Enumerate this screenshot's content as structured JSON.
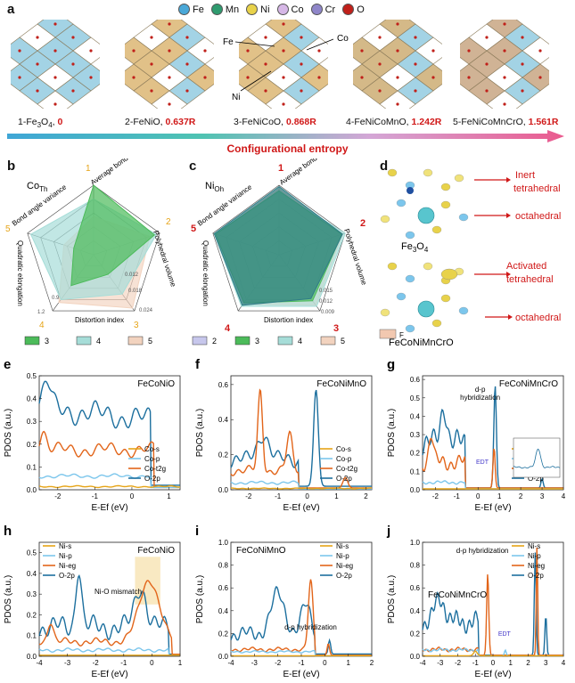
{
  "legend": {
    "items": [
      {
        "label": "Fe",
        "color": "#4aa8d8"
      },
      {
        "label": "Mn",
        "color": "#2f9b6f"
      },
      {
        "label": "Ni",
        "color": "#e8d24a"
      },
      {
        "label": "Co",
        "color": "#d6b7e6"
      },
      {
        "label": "Cr",
        "color": "#8f86c9"
      },
      {
        "label": "O",
        "color": "#c0201a"
      }
    ]
  },
  "panel_a": {
    "label": "a",
    "structures": [
      {
        "name_pre": "1-Fe",
        "sub": "3",
        "name_mid": "O",
        "sub2": "4",
        "name_post": ", ",
        "value": "0",
        "face": "#8cc8de"
      },
      {
        "name_pre": "2-FeNiO, ",
        "sub": "",
        "name_mid": "",
        "sub2": "",
        "name_post": "",
        "value": "0.637R",
        "face": "#d9b26a"
      },
      {
        "name_pre": "3-FeNiCoO, ",
        "sub": "",
        "name_mid": "",
        "sub2": "",
        "name_post": "",
        "value": "0.868R",
        "face": "#d9b26a"
      },
      {
        "name_pre": "4-FeNiCoMnO, ",
        "sub": "",
        "name_mid": "",
        "sub2": "",
        "name_post": "",
        "value": "1.242R",
        "face": "#c9a86a"
      },
      {
        "name_pre": "5-FeNiCoMnCrO, ",
        "sub": "",
        "name_mid": "",
        "sub2": "",
        "name_post": "",
        "value": "1.561R",
        "face": "#c4a07a"
      }
    ],
    "annotations": {
      "fe": "Fe",
      "ni": "Ni",
      "co": "Co"
    },
    "entropy_label": "Configurational entropy"
  },
  "panel_b": {
    "label": "b",
    "site_main": "Co",
    "site_sub": "Th",
    "axes": [
      "Average bond length",
      "Polyhedral volume",
      "Distortion index",
      "Quadratic elongation",
      "Bond angle variance"
    ],
    "axis_numbers": [
      "1",
      "2",
      "3",
      "4",
      "5"
    ],
    "ticks": [
      "0.012",
      "0.018",
      "0.024",
      "0.9",
      "1.2"
    ],
    "legend": [
      "3",
      "4",
      "5"
    ]
  },
  "panel_c": {
    "label": "c",
    "site_main": "Ni",
    "site_sub": "Oh",
    "axes": [
      "Average bond length",
      "Polyhedral volume",
      "Distortion index",
      "Quadratic elongation",
      "Bond angle variance"
    ],
    "axis_numbers": [
      "1",
      "2",
      "3",
      "4",
      "5"
    ],
    "ticks": [
      "0.015",
      "0.012",
      "0.009"
    ],
    "legend": [
      "2",
      "3",
      "4",
      "5"
    ]
  },
  "panel_d": {
    "label": "d",
    "top_formula_pre": "Fe",
    "top_sub": "3",
    "top_mid": "O",
    "top_sub2": "4",
    "bottom_formula": "FeCoNiMnCrO",
    "inert1": "Inert",
    "inert2": "tetrahedral",
    "oct1": "octahedral",
    "act1": "Activated",
    "act2": "tetrahedral",
    "oct2": "octahedral",
    "f_label": "F"
  },
  "panels_dos": [
    {
      "id": "e",
      "title": "FeCoNiO",
      "ylabel": "PDOS (a.u.)",
      "xlabel": "E-Ef (eV)",
      "yticks": [
        "0.0",
        "0.1",
        "0.2",
        "0.3",
        "0.4",
        "0.5"
      ],
      "xticks": [
        "-2",
        "-1",
        "0",
        "1"
      ],
      "legend": [
        "Co-s",
        "Co-p",
        "Co-t2g",
        "O-2p"
      ]
    },
    {
      "id": "f",
      "title": "FeCoNiMnO",
      "ylabel": "PDOS (a.u.)",
      "xlabel": "E-Ef (eV)",
      "yticks": [
        "0.0",
        "0.2",
        "0.4",
        "0.6"
      ],
      "xticks": [
        "-2",
        "-1",
        "0",
        "1",
        "2"
      ],
      "legend": [
        "Co-s",
        "Co-p",
        "Co-t2g",
        "O-2p"
      ]
    },
    {
      "id": "g",
      "title": "FeCoNiMnCrO",
      "ylabel": "PDOS (a.u.)",
      "xlabel": "E-Ef (eV)",
      "yticks": [
        "0.0",
        "0.1",
        "0.2",
        "0.3",
        "0.4",
        "0.5",
        "0.6"
      ],
      "xticks": [
        "-2",
        "-1",
        "0",
        "1",
        "2",
        "3",
        "4"
      ],
      "legend": [
        "Co-s",
        "Co-p",
        "Co-t2g",
        "O-2p"
      ],
      "annot": "d-p",
      "annot2": "hybridization",
      "edt": "EDT"
    },
    {
      "id": "h",
      "title": "FeCoNiO",
      "ylabel": "PDOS (a.u.)",
      "xlabel": "E-Ef (eV)",
      "yticks": [
        "0.0",
        "0.1",
        "0.2",
        "0.3",
        "0.4",
        "0.5"
      ],
      "xticks": [
        "-4",
        "-3",
        "-2",
        "-1",
        "0",
        "1"
      ],
      "legend": [
        "Ni-s",
        "Ni-p",
        "Ni-eg",
        "O-2p"
      ],
      "annot": "Ni-O mismatch"
    },
    {
      "id": "i",
      "title": "FeCoNiMnO",
      "ylabel": "PDOS (a.u.)",
      "xlabel": "E-Ef (eV)",
      "yticks": [
        "0.0",
        "0.2",
        "0.4",
        "0.6",
        "0.8",
        "1.0"
      ],
      "xticks": [
        "-4",
        "-3",
        "-2",
        "-1",
        "0",
        "1",
        "2"
      ],
      "legend": [
        "Ni-s",
        "Ni-p",
        "Ni-eg",
        "O-2p"
      ],
      "annot": "d-p hybridization"
    },
    {
      "id": "j",
      "title": "FeCoNiMnCrO",
      "ylabel": "PDOS (a.u.)",
      "xlabel": "E-Ef (eV)",
      "yticks": [
        "0.0",
        "0.2",
        "0.4",
        "0.6",
        "0.8",
        "1.0"
      ],
      "xticks": [
        "-4",
        "-3",
        "-2",
        "-1",
        "0",
        "1",
        "2",
        "3",
        "4"
      ],
      "legend": [
        "Ni-s",
        "Ni-p",
        "Ni-eg",
        "O-2p"
      ],
      "annot": "d-p hybridization",
      "edt": "EDT"
    }
  ],
  "colors": {
    "s": "#e6a417",
    "p": "#7cc6ec",
    "d": "#e2651a",
    "o2p": "#1c6f9e",
    "red": "#d01818"
  }
}
